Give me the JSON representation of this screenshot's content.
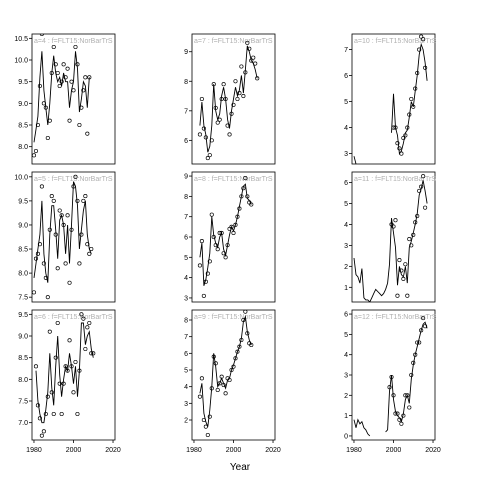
{
  "figure": {
    "xlabel": "Year",
    "x_ticks": [
      1980,
      2000,
      2020
    ],
    "colors": {
      "line": "#000000",
      "points": "#000000",
      "strip_text": "#b0b0b0"
    }
  },
  "chart_data": [
    {
      "type": "scatter",
      "strip": "a=4 : f=FLT15:NorBarTrS",
      "xlim": [
        1979,
        2021
      ],
      "ylim": [
        7.6,
        10.6
      ],
      "yticks": [
        8.0,
        8.5,
        9.0,
        9.5,
        10.0,
        10.5
      ],
      "ytick_labels": [
        "8.0",
        "8.5",
        "9.0",
        "9.5",
        "10.0",
        "10.5"
      ],
      "x": [
        1980,
        1981,
        1982,
        1983,
        1984,
        1985,
        1986,
        1987,
        1988,
        1989,
        1990,
        1991,
        1992,
        1993,
        1994,
        1995,
        1996,
        1997,
        1998,
        1999,
        2000,
        2001,
        2002,
        2003,
        2004,
        2005,
        2006,
        2007,
        2008,
        2009,
        2010,
        2011,
        2012,
        2013,
        2014,
        2015
      ],
      "points": [
        7.8,
        7.9,
        8.5,
        9.4,
        10.6,
        9.0,
        8.9,
        8.2,
        8.6,
        9.7,
        10.3,
        9.9,
        9.7,
        9.4,
        9.5,
        9.9,
        9.6,
        9.8,
        8.6,
        9.5,
        9.3,
        10.3,
        9.9,
        8.5,
        8.9,
        9.3,
        9.6,
        8.3,
        9.6,
        null,
        null,
        null,
        null,
        null,
        null,
        null
      ],
      "line": [
        8.1,
        8.4,
        8.7,
        9.6,
        10.2,
        9.3,
        8.9,
        8.5,
        9.0,
        9.7,
        10.1,
        9.7,
        9.5,
        9.6,
        9.4,
        9.7,
        9.5,
        9.5,
        8.9,
        9.3,
        9.5,
        10.2,
        9.8,
        8.8,
        9.1,
        9.5,
        9.4,
        8.9,
        9.6,
        null,
        null,
        null,
        null,
        null,
        null,
        null
      ]
    },
    {
      "type": "scatter",
      "strip": "a=7 : f=FLT15:NorBarTrS",
      "xlim": [
        1979,
        2021
      ],
      "ylim": [
        5.2,
        9.6
      ],
      "yticks": [
        6,
        7,
        8,
        9
      ],
      "ytick_labels": [
        "6",
        "7",
        "8",
        "9"
      ],
      "x": [
        1983,
        1984,
        1985,
        1986,
        1987,
        1988,
        1989,
        1990,
        1991,
        1992,
        1993,
        1994,
        1995,
        1996,
        1997,
        1998,
        1999,
        2000,
        2001,
        2002,
        2003,
        2004,
        2005,
        2006,
        2007,
        2008,
        2009,
        2010,
        2011,
        2012,
        2013,
        2014,
        2015,
        2016,
        2017
      ],
      "points": [
        6.2,
        7.4,
        6.4,
        6.1,
        5.4,
        5.5,
        6.0,
        7.9,
        7.1,
        6.6,
        6.7,
        7.4,
        7.9,
        7.4,
        6.5,
        6.2,
        6.9,
        7.2,
        8.0,
        7.4,
        7.6,
        8.5,
        7.5,
        8.3,
        9.3,
        9.1,
        8.7,
        8.8,
        8.6,
        8.1,
        null,
        null,
        null,
        null,
        null
      ],
      "line": [
        6.5,
        7.3,
        6.5,
        6.2,
        5.6,
        5.8,
        6.5,
        7.9,
        7.0,
        6.7,
        6.9,
        7.5,
        7.8,
        7.4,
        6.7,
        6.4,
        7.0,
        7.4,
        7.8,
        7.5,
        7.7,
        8.2,
        7.6,
        8.4,
        9.2,
        9.0,
        8.7,
        8.6,
        8.4,
        8.1,
        null,
        null,
        null,
        null,
        null
      ]
    },
    {
      "type": "scatter",
      "strip": "a=10 : f=FLT15:NorBarTrS",
      "xlim": [
        1979,
        2021
      ],
      "ylim": [
        2.6,
        7.6
      ],
      "yticks": [
        3,
        4,
        5,
        6,
        7
      ],
      "ytick_labels": [
        "3",
        "4",
        "5",
        "6",
        "7"
      ],
      "x": [
        1980,
        1981,
        1982,
        1983,
        1984,
        1985,
        1986,
        1987,
        1988,
        1989,
        1990,
        1991,
        1992,
        1993,
        1994,
        1995,
        1996,
        1997,
        1998,
        1999,
        2000,
        2001,
        2002,
        2003,
        2004,
        2005,
        2006,
        2007,
        2008,
        2009,
        2010,
        2011,
        2012,
        2013,
        2014,
        2015,
        2016,
        2017
      ],
      "points": [
        null,
        null,
        null,
        null,
        null,
        null,
        null,
        null,
        null,
        null,
        null,
        null,
        null,
        null,
        null,
        null,
        null,
        null,
        null,
        null,
        4.0,
        4.0,
        3.4,
        3.2,
        3.0,
        3.6,
        3.7,
        4.0,
        4.5,
        5.1,
        4.8,
        5.5,
        6.1,
        7.0,
        7.5,
        7.4,
        6.3,
        null
      ],
      "line": [
        2.9,
        2.6,
        null,
        2.9,
        null,
        null,
        null,
        null,
        null,
        null,
        null,
        null,
        null,
        null,
        null,
        null,
        null,
        null,
        null,
        3.8,
        5.3,
        4.0,
        3.7,
        3.0,
        3.1,
        3.4,
        3.8,
        3.9,
        4.4,
        5.0,
        4.8,
        5.4,
        6.0,
        6.8,
        7.2,
        7.0,
        6.5,
        5.8
      ]
    },
    {
      "type": "scatter",
      "strip": "a=5 : f=FLT15:NorBarTrS",
      "xlim": [
        1979,
        2021
      ],
      "ylim": [
        7.4,
        10.1
      ],
      "yticks": [
        7.5,
        8.0,
        8.5,
        9.0,
        9.5,
        10.0
      ],
      "ytick_labels": [
        "7.5",
        "8.0",
        "8.5",
        "9.0",
        "9.5",
        "10.0"
      ],
      "x": [
        1980,
        1981,
        1982,
        1983,
        1984,
        1985,
        1986,
        1987,
        1988,
        1989,
        1990,
        1991,
        1992,
        1993,
        1994,
        1995,
        1996,
        1997,
        1998,
        1999,
        2000,
        2001,
        2002,
        2003,
        2004,
        2005,
        2006,
        2007,
        2008,
        2009,
        2010,
        2011
      ],
      "points": [
        7.6,
        8.3,
        8.4,
        8.6,
        9.8,
        8.2,
        7.9,
        7.5,
        8.9,
        9.6,
        9.5,
        8.8,
        8.1,
        9.3,
        9.2,
        9.0,
        8.2,
        9.2,
        7.8,
        8.9,
        9.8,
        10.0,
        9.5,
        8.2,
        8.8,
        9.5,
        9.6,
        8.6,
        8.4,
        8.5,
        null,
        null
      ],
      "line": [
        7.9,
        8.2,
        8.5,
        8.8,
        9.5,
        8.4,
        8.0,
        7.8,
        8.8,
        9.4,
        9.4,
        8.9,
        8.3,
        9.1,
        9.2,
        9.0,
        8.4,
        9.0,
        8.2,
        9.0,
        9.9,
        9.8,
        9.4,
        8.5,
        8.9,
        9.3,
        9.5,
        8.8,
        8.5,
        8.4,
        null,
        null
      ]
    },
    {
      "type": "scatter",
      "strip": "a=8 : f=FLT15:NorBarTrS",
      "xlim": [
        1979,
        2021
      ],
      "ylim": [
        2.8,
        9.2
      ],
      "yticks": [
        3,
        4,
        5,
        6,
        7,
        8,
        9
      ],
      "ytick_labels": [
        "3",
        "4",
        "5",
        "6",
        "7",
        "8",
        "9"
      ],
      "x": [
        1983,
        1984,
        1985,
        1986,
        1987,
        1988,
        1989,
        1990,
        1991,
        1992,
        1993,
        1994,
        1995,
        1996,
        1997,
        1998,
        1999,
        2000,
        2001,
        2002,
        2003,
        2004,
        2005,
        2006,
        2007,
        2008,
        2009,
        2010,
        2011,
        2012
      ],
      "points": [
        4.6,
        5.8,
        3.1,
        3.8,
        4.2,
        4.8,
        7.1,
        6.0,
        5.6,
        5.4,
        6.2,
        6.2,
        5.2,
        5.0,
        5.6,
        6.4,
        6.5,
        6.2,
        6.6,
        7.0,
        7.4,
        8.0,
        8.4,
        8.9,
        8.0,
        7.7,
        7.6,
        null,
        null,
        null
      ],
      "line": [
        5.0,
        5.7,
        3.6,
        3.9,
        4.5,
        5.2,
        7.0,
        6.1,
        5.7,
        5.5,
        6.0,
        6.2,
        5.4,
        5.1,
        5.6,
        6.1,
        6.5,
        6.3,
        6.6,
        7.0,
        7.5,
        8.0,
        8.5,
        8.6,
        7.9,
        7.8,
        7.6,
        null,
        null,
        null
      ]
    },
    {
      "type": "scatter",
      "strip": "a=11 : f=FLT15:NorBarTrS",
      "xlim": [
        1979,
        2021
      ],
      "ylim": [
        0.3,
        6.5
      ],
      "yticks": [
        1,
        2,
        3,
        4,
        5,
        6
      ],
      "ytick_labels": [
        "1",
        "2",
        "3",
        "4",
        "5",
        "6"
      ],
      "x": [
        1980,
        1981,
        1982,
        1983,
        1984,
        1985,
        1986,
        1987,
        1988,
        1989,
        1990,
        1991,
        1992,
        1993,
        1994,
        1995,
        1996,
        1997,
        1998,
        1999,
        2000,
        2001,
        2002,
        2003,
        2004,
        2005,
        2006,
        2007,
        2008,
        2009,
        2010,
        2011,
        2012,
        2013,
        2014,
        2015,
        2016,
        2017
      ],
      "points": [
        null,
        null,
        null,
        null,
        null,
        null,
        null,
        null,
        null,
        null,
        null,
        null,
        null,
        null,
        null,
        null,
        null,
        null,
        null,
        4.0,
        3.9,
        4.2,
        0.6,
        2.3,
        1.8,
        1.4,
        2.1,
        0.6,
        3.3,
        3.0,
        3.5,
        4.1,
        4.4,
        5.6,
        5.8,
        6.3,
        4.8,
        null
      ],
      "line": [
        2.4,
        1.6,
        1.5,
        1.2,
        1.9,
        0.5,
        0.4,
        0.4,
        0.3,
        0.5,
        0.7,
        0.9,
        0.8,
        0.7,
        0.6,
        0.7,
        0.9,
        1.2,
        2.1,
        4.3,
        3.6,
        2.9,
        1.1,
        2.0,
        1.6,
        1.5,
        2.0,
        1.2,
        2.9,
        3.2,
        3.6,
        4.0,
        4.5,
        5.4,
        5.7,
        6.1,
        5.6,
        5.0
      ]
    },
    {
      "type": "scatter",
      "strip": "a=6 : f=FLT15:NorBarTrS",
      "xlim": [
        1979,
        2021
      ],
      "ylim": [
        6.6,
        9.6
      ],
      "yticks": [
        7.0,
        7.5,
        8.0,
        8.5,
        9.0,
        9.5
      ],
      "ytick_labels": [
        "7.0",
        "7.5",
        "8.0",
        "8.5",
        "9.0",
        "9.5"
      ],
      "x": [
        1980,
        1981,
        1982,
        1983,
        1984,
        1985,
        1986,
        1987,
        1988,
        1989,
        1990,
        1991,
        1992,
        1993,
        1994,
        1995,
        1996,
        1997,
        1998,
        1999,
        2000,
        2001,
        2002,
        2003,
        2004,
        2005,
        2006,
        2007,
        2008,
        2009,
        2010,
        2011,
        2012,
        2013,
        2014,
        2015,
        2016
      ],
      "points": [
        null,
        8.3,
        7.4,
        7.1,
        6.7,
        6.8,
        7.2,
        7.6,
        9.1,
        7.7,
        7.2,
        8.5,
        9.3,
        7.9,
        7.2,
        7.9,
        8.3,
        8.2,
        8.9,
        8.3,
        7.7,
        8.4,
        7.2,
        8.2,
        9.5,
        9.4,
        8.7,
        9.2,
        9.3,
        8.6,
        8.6,
        null,
        null,
        null,
        null,
        null,
        null
      ],
      "line": [
        null,
        8.2,
        7.5,
        7.2,
        7.0,
        7.0,
        7.3,
        7.7,
        8.6,
        7.8,
        7.4,
        8.3,
        9.0,
        8.1,
        7.6,
        8.0,
        8.3,
        8.2,
        8.6,
        8.3,
        7.9,
        8.3,
        7.6,
        8.2,
        9.3,
        9.3,
        8.8,
        9.0,
        9.1,
        8.7,
        8.5,
        null,
        null,
        null,
        null,
        null,
        null
      ]
    },
    {
      "type": "scatter",
      "strip": "a=9 : f=FLT15:NorBarTrS",
      "xlim": [
        1979,
        2021
      ],
      "ylim": [
        0.8,
        8.6
      ],
      "yticks": [
        2,
        3,
        4,
        5,
        6,
        7,
        8
      ],
      "ytick_labels": [
        "2",
        "3",
        "4",
        "5",
        "6",
        "7",
        "8"
      ],
      "x": [
        1983,
        1984,
        1985,
        1986,
        1987,
        1988,
        1989,
        1990,
        1991,
        1992,
        1993,
        1994,
        1995,
        1996,
        1997,
        1998,
        1999,
        2000,
        2001,
        2002,
        2003,
        2004,
        2005,
        2006,
        2007,
        2008,
        2009,
        2010,
        2011,
        2012
      ],
      "points": [
        3.4,
        4.5,
        2.0,
        1.6,
        1.1,
        2.2,
        3.9,
        5.8,
        5.4,
        3.8,
        4.2,
        4.6,
        4.1,
        3.6,
        4.5,
        4.4,
        5.0,
        5.2,
        5.7,
        6.1,
        6.4,
        6.8,
        8.0,
        8.5,
        7.2,
        6.6,
        6.5,
        null,
        null,
        null
      ],
      "line": [
        3.6,
        4.2,
        2.4,
        1.9,
        1.6,
        2.6,
        4.0,
        6.0,
        5.2,
        4.0,
        4.2,
        4.5,
        4.2,
        3.9,
        4.4,
        4.5,
        5.0,
        5.3,
        5.7,
        6.1,
        6.4,
        6.9,
        7.9,
        8.2,
        7.3,
        6.8,
        6.5,
        null,
        null,
        null
      ]
    },
    {
      "type": "scatter",
      "strip": "a=12 : f=FLT15:NorBarTrS",
      "xlim": [
        1979,
        2021
      ],
      "ylim": [
        -0.2,
        6.2
      ],
      "yticks": [
        0,
        1,
        2,
        3,
        4,
        5,
        6
      ],
      "ytick_labels": [
        "0",
        "1",
        "2",
        "3",
        "4",
        "5",
        "6"
      ],
      "x": [
        1980,
        1981,
        1982,
        1983,
        1984,
        1985,
        1986,
        1987,
        1988,
        1989,
        1990,
        1991,
        1992,
        1993,
        1994,
        1995,
        1996,
        1997,
        1998,
        1999,
        2000,
        2001,
        2002,
        2003,
        2004,
        2005,
        2006,
        2007,
        2008,
        2009,
        2010,
        2011,
        2012,
        2013,
        2014,
        2015,
        2016,
        2017
      ],
      "points": [
        null,
        null,
        null,
        null,
        null,
        null,
        null,
        null,
        null,
        null,
        null,
        null,
        null,
        null,
        null,
        null,
        null,
        null,
        2.4,
        2.9,
        2.0,
        1.1,
        1.1,
        0.8,
        0.6,
        1.0,
        2.0,
        2.0,
        1.4,
        3.0,
        3.6,
        4.0,
        4.6,
        4.6,
        5.2,
        5.8,
        5.4,
        null
      ],
      "line": [
        0.8,
        0.4,
        0.8,
        0.6,
        0.7,
        0.4,
        0.3,
        0.1,
        0.0,
        null,
        null,
        null,
        null,
        null,
        null,
        null,
        0.2,
        0.3,
        2.2,
        3.0,
        1.8,
        1.2,
        1.0,
        0.9,
        0.7,
        1.1,
        1.8,
        2.0,
        1.6,
        2.8,
        3.5,
        4.0,
        4.4,
        4.8,
        5.2,
        5.5,
        5.6,
        5.3
      ]
    }
  ]
}
